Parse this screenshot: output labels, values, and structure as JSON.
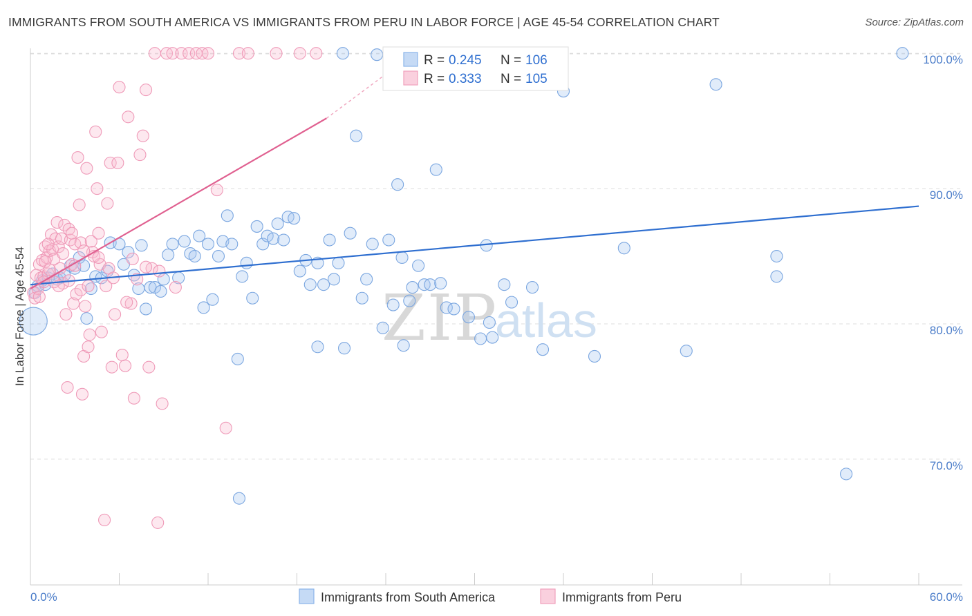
{
  "header": {
    "title": "IMMIGRANTS FROM SOUTH AMERICA VS IMMIGRANTS FROM PERU IN LABOR FORCE | AGE 45-54 CORRELATION CHART",
    "source": "Source: ZipAtlas.com"
  },
  "watermark": {
    "part1": "ZIP",
    "part2": "atlas"
  },
  "legend": {
    "r_label": "R =",
    "n_label": "N =",
    "series": [
      {
        "name": "Immigrants from South America",
        "r": "0.245",
        "n": "106",
        "color": "#8ab4e8",
        "fill": "#c5daf5"
      },
      {
        "name": "Immigrants from Peru",
        "r": "0.333",
        "n": "105",
        "color": "#f0a0bc",
        "fill": "#fad0de"
      }
    ]
  },
  "chart_data": {
    "type": "scatter",
    "title": "IMMIGRANTS FROM SOUTH AMERICA VS IMMIGRANTS FROM PERU IN LABOR FORCE | AGE 45-54 CORRELATION CHART",
    "xlabel": "",
    "ylabel": "In Labor Force | Age 45-54",
    "xlim": [
      0,
      60
    ],
    "ylim": [
      60.7,
      101.9
    ],
    "x_tick_labels": [
      "0.0%",
      "60.0%"
    ],
    "y_ticks": [
      70,
      80,
      90,
      100
    ],
    "y_tick_labels": [
      "70.0%",
      "80.0%",
      "90.0%",
      "100.0%"
    ],
    "grid": true,
    "legend_position": "top-center",
    "series": [
      {
        "name": "Immigrants from South America",
        "color": "#2f6fd0",
        "trend": {
          "x": [
            0,
            60
          ],
          "y": [
            82.9,
            88.7
          ]
        },
        "points": [
          {
            "x": 0.2,
            "y": 80.2,
            "big": true
          },
          {
            "x": 0.3,
            "y": 82.3
          },
          {
            "x": 0.5,
            "y": 82.8
          },
          {
            "x": 0.8,
            "y": 83.2
          },
          {
            "x": 1.0,
            "y": 82.9
          },
          {
            "x": 1.2,
            "y": 83.4
          },
          {
            "x": 1.5,
            "y": 83.7
          },
          {
            "x": 1.8,
            "y": 83.3
          },
          {
            "x": 2.0,
            "y": 83.4
          },
          {
            "x": 2.3,
            "y": 83.6
          },
          {
            "x": 2.7,
            "y": 84.3
          },
          {
            "x": 3.0,
            "y": 84.1
          },
          {
            "x": 3.3,
            "y": 84.9
          },
          {
            "x": 3.6,
            "y": 84.3
          },
          {
            "x": 3.8,
            "y": 80.4
          },
          {
            "x": 4.1,
            "y": 82.6
          },
          {
            "x": 4.4,
            "y": 83.5
          },
          {
            "x": 4.8,
            "y": 83.4
          },
          {
            "x": 5.2,
            "y": 83.9
          },
          {
            "x": 5.4,
            "y": 86.0
          },
          {
            "x": 6.0,
            "y": 85.9
          },
          {
            "x": 6.3,
            "y": 84.4
          },
          {
            "x": 6.6,
            "y": 85.3
          },
          {
            "x": 7.0,
            "y": 83.6
          },
          {
            "x": 7.3,
            "y": 82.6
          },
          {
            "x": 7.5,
            "y": 85.8
          },
          {
            "x": 7.8,
            "y": 81.1
          },
          {
            "x": 8.1,
            "y": 82.7
          },
          {
            "x": 8.4,
            "y": 82.7
          },
          {
            "x": 8.8,
            "y": 82.4
          },
          {
            "x": 9.0,
            "y": 83.3
          },
          {
            "x": 9.3,
            "y": 85.1
          },
          {
            "x": 9.6,
            "y": 85.9
          },
          {
            "x": 10.0,
            "y": 83.4
          },
          {
            "x": 10.4,
            "y": 86.1
          },
          {
            "x": 10.8,
            "y": 85.2
          },
          {
            "x": 11.1,
            "y": 85.0
          },
          {
            "x": 11.4,
            "y": 86.5
          },
          {
            "x": 11.7,
            "y": 81.2
          },
          {
            "x": 12.0,
            "y": 85.9
          },
          {
            "x": 12.3,
            "y": 81.8
          },
          {
            "x": 12.7,
            "y": 85.0
          },
          {
            "x": 13.0,
            "y": 86.1
          },
          {
            "x": 13.3,
            "y": 88.0
          },
          {
            "x": 13.6,
            "y": 85.9
          },
          {
            "x": 14.0,
            "y": 77.4
          },
          {
            "x": 14.3,
            "y": 83.5
          },
          {
            "x": 14.6,
            "y": 84.5
          },
          {
            "x": 15.0,
            "y": 81.9
          },
          {
            "x": 15.3,
            "y": 87.2
          },
          {
            "x": 15.7,
            "y": 85.9
          },
          {
            "x": 16.0,
            "y": 86.5
          },
          {
            "x": 16.4,
            "y": 86.3
          },
          {
            "x": 16.7,
            "y": 87.4
          },
          {
            "x": 17.1,
            "y": 86.2
          },
          {
            "x": 17.4,
            "y": 87.9
          },
          {
            "x": 17.8,
            "y": 87.8
          },
          {
            "x": 18.2,
            "y": 83.9
          },
          {
            "x": 18.6,
            "y": 84.7
          },
          {
            "x": 18.9,
            "y": 82.9
          },
          {
            "x": 19.4,
            "y": 84.5
          },
          {
            "x": 19.8,
            "y": 82.9
          },
          {
            "x": 20.2,
            "y": 86.2
          },
          {
            "x": 20.5,
            "y": 83.3
          },
          {
            "x": 20.8,
            "y": 84.5
          },
          {
            "x": 21.2,
            "y": 78.2
          },
          {
            "x": 21.6,
            "y": 86.7
          },
          {
            "x": 22.0,
            "y": 93.9
          },
          {
            "x": 22.4,
            "y": 81.9
          },
          {
            "x": 22.7,
            "y": 83.3
          },
          {
            "x": 23.1,
            "y": 85.9
          },
          {
            "x": 23.4,
            "y": 99.9
          },
          {
            "x": 23.8,
            "y": 79.7
          },
          {
            "x": 24.2,
            "y": 86.2
          },
          {
            "x": 24.5,
            "y": 81.4
          },
          {
            "x": 24.8,
            "y": 90.3
          },
          {
            "x": 25.1,
            "y": 84.9
          },
          {
            "x": 25.6,
            "y": 81.7
          },
          {
            "x": 26.2,
            "y": 84.3
          },
          {
            "x": 26.6,
            "y": 82.9
          },
          {
            "x": 27.0,
            "y": 82.9
          },
          {
            "x": 27.4,
            "y": 91.4
          },
          {
            "x": 27.7,
            "y": 83.0
          },
          {
            "x": 28.1,
            "y": 81.2
          },
          {
            "x": 28.6,
            "y": 81.1
          },
          {
            "x": 29.6,
            "y": 80.5
          },
          {
            "x": 30.4,
            "y": 78.9
          },
          {
            "x": 31.0,
            "y": 80.1
          },
          {
            "x": 31.2,
            "y": 79.0
          },
          {
            "x": 32.0,
            "y": 82.9
          },
          {
            "x": 32.5,
            "y": 81.6
          },
          {
            "x": 33.9,
            "y": 82.7
          },
          {
            "x": 34.6,
            "y": 78.1
          },
          {
            "x": 36.0,
            "y": 97.2
          },
          {
            "x": 38.1,
            "y": 77.6
          },
          {
            "x": 40.1,
            "y": 85.6
          },
          {
            "x": 44.3,
            "y": 78.0
          },
          {
            "x": 46.3,
            "y": 97.7
          },
          {
            "x": 50.4,
            "y": 83.5
          },
          {
            "x": 50.4,
            "y": 85.0
          },
          {
            "x": 55.1,
            "y": 68.9
          },
          {
            "x": 58.9,
            "y": 100.0
          },
          {
            "x": 14.1,
            "y": 67.1
          },
          {
            "x": 19.4,
            "y": 78.3
          },
          {
            "x": 21.1,
            "y": 100.0
          },
          {
            "x": 25.2,
            "y": 78.4
          },
          {
            "x": 30.8,
            "y": 85.8
          },
          {
            "x": 25.8,
            "y": 82.7
          }
        ]
      },
      {
        "name": "Immigrants from Peru",
        "color": "#e06090",
        "trend": {
          "x": [
            0,
            20
          ],
          "y": [
            82.6,
            95.2
          ]
        },
        "trend_dashed": {
          "x": [
            20,
            24.3
          ],
          "y": [
            95.2,
            98.7
          ]
        },
        "points": [
          {
            "x": 0.2,
            "y": 82.3
          },
          {
            "x": 0.3,
            "y": 81.9
          },
          {
            "x": 0.4,
            "y": 83.6
          },
          {
            "x": 0.5,
            "y": 82.6
          },
          {
            "x": 0.6,
            "y": 84.4
          },
          {
            "x": 0.7,
            "y": 83.4
          },
          {
            "x": 0.8,
            "y": 84.7
          },
          {
            "x": 0.9,
            "y": 83.5
          },
          {
            "x": 1.0,
            "y": 85.7
          },
          {
            "x": 1.1,
            "y": 84.9
          },
          {
            "x": 1.2,
            "y": 83.7
          },
          {
            "x": 1.3,
            "y": 85.4
          },
          {
            "x": 1.4,
            "y": 86.6
          },
          {
            "x": 1.5,
            "y": 85.5
          },
          {
            "x": 1.6,
            "y": 84.8
          },
          {
            "x": 1.7,
            "y": 86.3
          },
          {
            "x": 1.8,
            "y": 87.5
          },
          {
            "x": 1.9,
            "y": 85.7
          },
          {
            "x": 2.0,
            "y": 84.1
          },
          {
            "x": 2.1,
            "y": 86.3
          },
          {
            "x": 2.2,
            "y": 83.0
          },
          {
            "x": 2.3,
            "y": 87.3
          },
          {
            "x": 2.4,
            "y": 80.7
          },
          {
            "x": 2.5,
            "y": 75.3
          },
          {
            "x": 2.6,
            "y": 87.0
          },
          {
            "x": 2.7,
            "y": 86.2
          },
          {
            "x": 2.8,
            "y": 84.4
          },
          {
            "x": 2.9,
            "y": 81.5
          },
          {
            "x": 3.0,
            "y": 85.9
          },
          {
            "x": 3.1,
            "y": 82.2
          },
          {
            "x": 3.2,
            "y": 92.3
          },
          {
            "x": 3.3,
            "y": 88.8
          },
          {
            "x": 3.4,
            "y": 86.0
          },
          {
            "x": 3.5,
            "y": 74.8
          },
          {
            "x": 3.6,
            "y": 77.6
          },
          {
            "x": 3.7,
            "y": 81.3
          },
          {
            "x": 3.8,
            "y": 91.5
          },
          {
            "x": 3.9,
            "y": 78.3
          },
          {
            "x": 4.0,
            "y": 79.2
          },
          {
            "x": 4.1,
            "y": 86.1
          },
          {
            "x": 4.2,
            "y": 85.3
          },
          {
            "x": 4.4,
            "y": 94.2
          },
          {
            "x": 4.5,
            "y": 90.0
          },
          {
            "x": 4.6,
            "y": 86.7
          },
          {
            "x": 4.7,
            "y": 84.4
          },
          {
            "x": 4.8,
            "y": 79.4
          },
          {
            "x": 5.0,
            "y": 65.5
          },
          {
            "x": 5.2,
            "y": 88.9
          },
          {
            "x": 5.3,
            "y": 84.1
          },
          {
            "x": 5.4,
            "y": 91.9
          },
          {
            "x": 5.5,
            "y": 76.8
          },
          {
            "x": 5.7,
            "y": 80.7
          },
          {
            "x": 5.9,
            "y": 91.9
          },
          {
            "x": 6.0,
            "y": 97.5
          },
          {
            "x": 6.2,
            "y": 77.7
          },
          {
            "x": 6.4,
            "y": 76.9
          },
          {
            "x": 6.6,
            "y": 95.3
          },
          {
            "x": 6.8,
            "y": 81.5
          },
          {
            "x": 7.0,
            "y": 74.5
          },
          {
            "x": 7.2,
            "y": 83.3
          },
          {
            "x": 7.4,
            "y": 92.5
          },
          {
            "x": 7.6,
            "y": 93.9
          },
          {
            "x": 7.8,
            "y": 97.3
          },
          {
            "x": 8.0,
            "y": 76.8
          },
          {
            "x": 8.2,
            "y": 84.1
          },
          {
            "x": 8.4,
            "y": 100.0
          },
          {
            "x": 8.6,
            "y": 65.3
          },
          {
            "x": 8.9,
            "y": 74.1
          },
          {
            "x": 9.2,
            "y": 100.0
          },
          {
            "x": 9.6,
            "y": 100.0
          },
          {
            "x": 10.2,
            "y": 100.0
          },
          {
            "x": 10.7,
            "y": 100.0
          },
          {
            "x": 11.2,
            "y": 100.0
          },
          {
            "x": 11.6,
            "y": 100.0
          },
          {
            "x": 12.0,
            "y": 100.0
          },
          {
            "x": 12.6,
            "y": 89.9
          },
          {
            "x": 13.2,
            "y": 72.3
          },
          {
            "x": 14.1,
            "y": 100.0
          },
          {
            "x": 14.7,
            "y": 100.0
          },
          {
            "x": 16.6,
            "y": 100.0
          },
          {
            "x": 18.2,
            "y": 100.0
          },
          {
            "x": 19.3,
            "y": 100.0
          },
          {
            "x": 6.9,
            "y": 84.8
          },
          {
            "x": 5.1,
            "y": 82.8
          },
          {
            "x": 4.3,
            "y": 85.0
          },
          {
            "x": 3.0,
            "y": 84.3
          },
          {
            "x": 2.2,
            "y": 85.2
          },
          {
            "x": 1.6,
            "y": 83.1
          },
          {
            "x": 1.0,
            "y": 84.6
          },
          {
            "x": 0.6,
            "y": 82.0
          },
          {
            "x": 0.9,
            "y": 83.1
          },
          {
            "x": 1.3,
            "y": 84.0
          },
          {
            "x": 1.9,
            "y": 82.8
          },
          {
            "x": 2.6,
            "y": 83.2
          },
          {
            "x": 3.4,
            "y": 82.5
          },
          {
            "x": 3.9,
            "y": 82.8
          },
          {
            "x": 4.6,
            "y": 84.9
          },
          {
            "x": 5.6,
            "y": 83.4
          },
          {
            "x": 6.5,
            "y": 81.6
          },
          {
            "x": 7.8,
            "y": 84.2
          },
          {
            "x": 8.7,
            "y": 83.9
          },
          {
            "x": 9.8,
            "y": 82.7
          },
          {
            "x": 1.2,
            "y": 85.9
          },
          {
            "x": 2.8,
            "y": 86.7
          },
          {
            "x": 3.6,
            "y": 85.4
          }
        ]
      }
    ]
  }
}
